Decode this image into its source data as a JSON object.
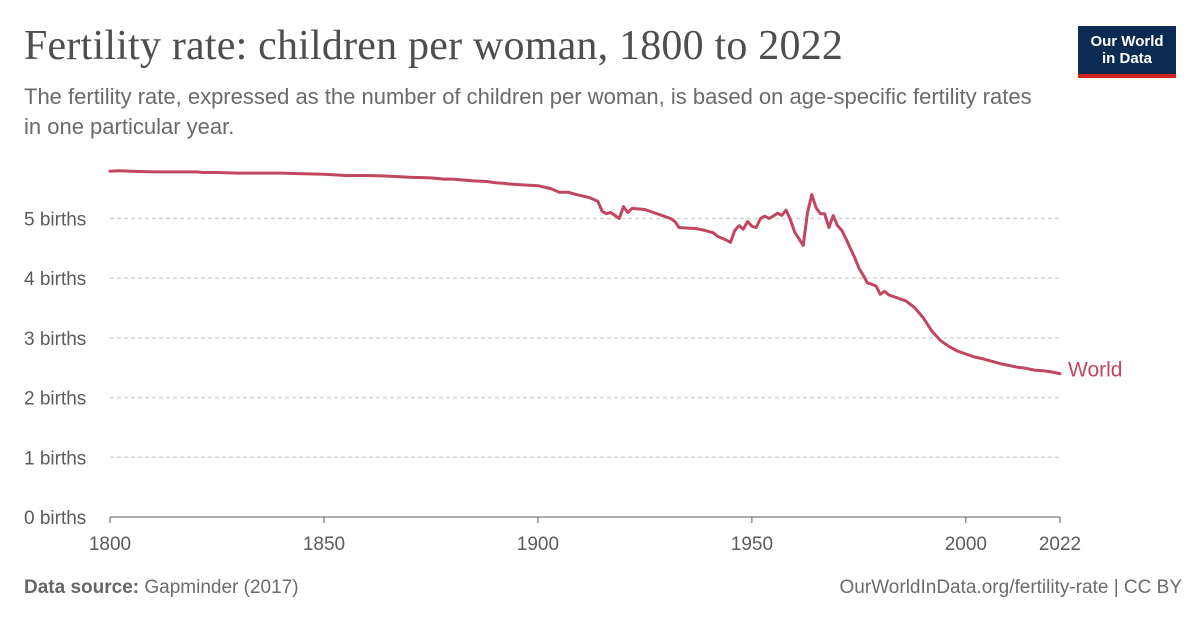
{
  "header": {
    "title": "Fertility rate: children per woman, 1800 to 2022",
    "subtitle": "The fertility rate, expressed as the number of children per woman, is based on age-specific fertility rates in one particular year.",
    "logo_line1": "Our World",
    "logo_line2": "in Data"
  },
  "footer": {
    "source_label": "Data source:",
    "source_value": "Gapminder (2017)",
    "license": "OurWorldInData.org/fertility-rate | CC BY"
  },
  "colors": {
    "series": "#c0475f",
    "grid": "#d6d6d6",
    "axis": "#5b5b5b",
    "logo_bg": "#0b2b52",
    "logo_accent": "#ce261e"
  },
  "chart_data": {
    "type": "line",
    "xlim": [
      1800,
      2022
    ],
    "ylim": [
      0,
      6
    ],
    "x_ticks": [
      1800,
      1850,
      1900,
      1950,
      2000,
      2022
    ],
    "x_tick_labels": [
      "1800",
      "1850",
      "1900",
      "1950",
      "2000",
      "2022"
    ],
    "y_ticks": [
      0,
      1,
      2,
      3,
      4,
      5
    ],
    "y_tick_labels": [
      "0 births",
      "1 births",
      "2 births",
      "3 births",
      "4 births",
      "5 births"
    ],
    "grid": "horizontal dashed",
    "series": [
      {
        "name": "World",
        "color": "#c0475f",
        "x": [
          1800,
          1802,
          1805,
          1810,
          1815,
          1820,
          1822,
          1825,
          1830,
          1835,
          1840,
          1845,
          1850,
          1855,
          1860,
          1865,
          1870,
          1875,
          1878,
          1880,
          1885,
          1888,
          1890,
          1892,
          1893,
          1895,
          1900,
          1903,
          1905,
          1907,
          1909,
          1912,
          1914,
          1915,
          1916,
          1917,
          1918,
          1919,
          1920,
          1921,
          1922,
          1925,
          1927,
          1929,
          1931,
          1932,
          1933,
          1935,
          1937,
          1939,
          1941,
          1942,
          1944,
          1945,
          1946,
          1947,
          1948,
          1949,
          1950,
          1951,
          1952,
          1953,
          1954,
          1955,
          1956,
          1957,
          1958,
          1959,
          1960,
          1961,
          1962,
          1963,
          1964,
          1965,
          1966,
          1967,
          1968,
          1969,
          1970,
          1971,
          1972,
          1973,
          1974,
          1975,
          1976,
          1977,
          1978,
          1979,
          1980,
          1981,
          1982,
          1984,
          1986,
          1988,
          1990,
          1992,
          1994,
          1996,
          1998,
          2000,
          2002,
          2004,
          2006,
          2008,
          2010,
          2012,
          2014,
          2016,
          2018,
          2020,
          2022
        ],
        "values": [
          5.79,
          5.8,
          5.79,
          5.78,
          5.78,
          5.78,
          5.77,
          5.77,
          5.76,
          5.76,
          5.76,
          5.75,
          5.74,
          5.72,
          5.72,
          5.71,
          5.69,
          5.68,
          5.66,
          5.66,
          5.63,
          5.62,
          5.6,
          5.59,
          5.58,
          5.57,
          5.55,
          5.5,
          5.44,
          5.44,
          5.4,
          5.35,
          5.29,
          5.12,
          5.08,
          5.1,
          5.05,
          5.0,
          5.2,
          5.1,
          5.17,
          5.15,
          5.1,
          5.05,
          5.0,
          4.95,
          4.85,
          4.84,
          4.83,
          4.8,
          4.76,
          4.7,
          4.64,
          4.6,
          4.8,
          4.88,
          4.82,
          4.95,
          4.87,
          4.85,
          5.0,
          5.04,
          5.0,
          5.04,
          5.09,
          5.05,
          5.14,
          4.98,
          4.77,
          4.66,
          4.55,
          5.1,
          5.4,
          5.18,
          5.08,
          5.08,
          4.85,
          5.05,
          4.88,
          4.8,
          4.66,
          4.5,
          4.35,
          4.17,
          4.05,
          3.92,
          3.9,
          3.87,
          3.73,
          3.78,
          3.72,
          3.67,
          3.62,
          3.51,
          3.34,
          3.12,
          2.96,
          2.86,
          2.78,
          2.73,
          2.68,
          2.65,
          2.61,
          2.57,
          2.54,
          2.51,
          2.49,
          2.46,
          2.45,
          2.43,
          2.4
        ]
      }
    ]
  }
}
